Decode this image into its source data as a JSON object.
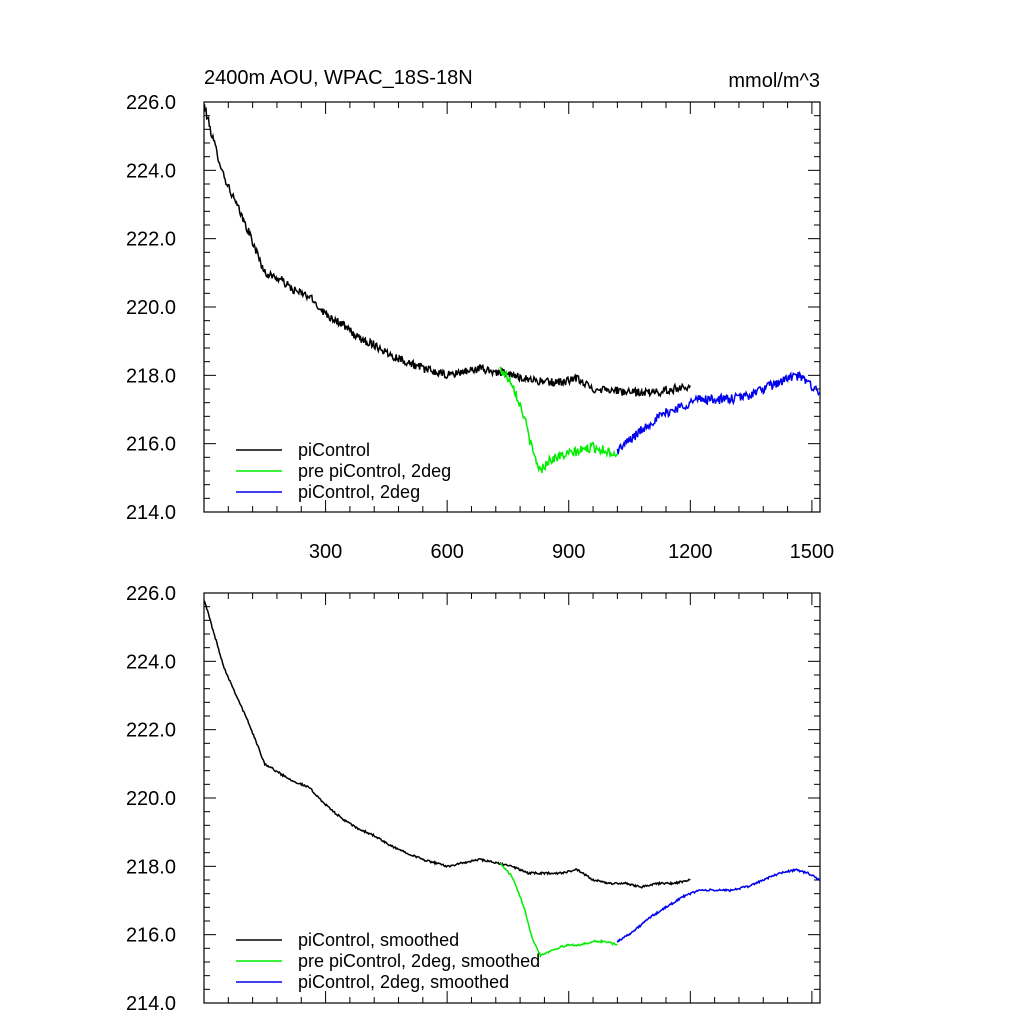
{
  "chart_data": [
    {
      "type": "line",
      "title": "2400m AOU, WPAC_18S-18N",
      "units": "mmol/m^3",
      "xlabel": "",
      "ylabel": "",
      "xlim": [
        0,
        1520
      ],
      "ylim": [
        214.0,
        226.0
      ],
      "x_ticks": [
        300,
        600,
        900,
        1200,
        1500
      ],
      "x_tick_labels": [
        "300",
        "600",
        "900",
        "1200",
        "1500"
      ],
      "y_ticks": [
        214.0,
        216.0,
        218.0,
        220.0,
        222.0,
        224.0,
        226.0
      ],
      "y_tick_labels": [
        "214.0",
        "216.0",
        "218.0",
        "220.0",
        "222.0",
        "224.0",
        "226.0"
      ],
      "legend_position": "bottom-left",
      "series": [
        {
          "name": "piControl",
          "color": "#000000",
          "noise": 0.12,
          "x": [
            1,
            20,
            50,
            80,
            110,
            150,
            190,
            220,
            260,
            300,
            340,
            380,
            420,
            460,
            500,
            540,
            600,
            640,
            680,
            720,
            760,
            800,
            840,
            880,
            920,
            960,
            1000,
            1040,
            1080,
            1120,
            1160,
            1200
          ],
          "y": [
            225.9,
            225.0,
            223.8,
            223.0,
            222.2,
            221.0,
            220.8,
            220.5,
            220.3,
            219.8,
            219.5,
            219.1,
            218.9,
            218.6,
            218.4,
            218.2,
            218.0,
            218.1,
            218.2,
            218.1,
            218.0,
            217.9,
            217.8,
            217.8,
            217.9,
            217.6,
            217.6,
            217.5,
            217.5,
            217.5,
            217.6,
            217.7
          ]
        },
        {
          "name": "pre piControl, 2deg",
          "color": "#00ee00",
          "noise": 0.14,
          "x": [
            730,
            760,
            790,
            810,
            830,
            850,
            870,
            900,
            930,
            960,
            990,
            1020
          ],
          "y": [
            218.2,
            217.8,
            216.8,
            215.8,
            215.2,
            215.5,
            215.6,
            215.7,
            215.8,
            215.9,
            215.8,
            215.7
          ],
          "noise_start_index": 0
        },
        {
          "name": "piControl, 2deg",
          "color": "#0000ee",
          "noise": 0.14,
          "x": [
            1020,
            1060,
            1100,
            1140,
            1180,
            1220,
            1260,
            1300,
            1340,
            1380,
            1420,
            1460,
            1490,
            1520
          ],
          "y": [
            215.8,
            216.2,
            216.6,
            216.9,
            217.1,
            217.3,
            217.3,
            217.3,
            217.4,
            217.6,
            217.8,
            218.0,
            217.8,
            217.5
          ]
        }
      ]
    },
    {
      "type": "line",
      "title": "",
      "xlabel": "",
      "ylabel": "",
      "xlim": [
        0,
        1520
      ],
      "ylim": [
        214.0,
        226.0
      ],
      "x_ticks": [
        300,
        600,
        900,
        1200,
        1500
      ],
      "x_tick_labels": [],
      "y_ticks": [
        214.0,
        216.0,
        218.0,
        220.0,
        222.0,
        224.0,
        226.0
      ],
      "y_tick_labels": [
        "214.0",
        "216.0",
        "218.0",
        "220.0",
        "222.0",
        "224.0",
        "226.0"
      ],
      "legend_position": "bottom-left",
      "series": [
        {
          "name": "piControl, smoothed",
          "color": "#000000",
          "noise": 0.03,
          "x": [
            1,
            20,
            50,
            80,
            110,
            150,
            190,
            220,
            260,
            300,
            340,
            380,
            420,
            460,
            500,
            540,
            600,
            640,
            680,
            720,
            760,
            800,
            840,
            880,
            920,
            960,
            1000,
            1040,
            1080,
            1120,
            1160,
            1200
          ],
          "y": [
            225.8,
            225.0,
            223.8,
            223.0,
            222.2,
            221.0,
            220.7,
            220.5,
            220.3,
            219.8,
            219.4,
            219.1,
            218.9,
            218.6,
            218.4,
            218.2,
            218.0,
            218.1,
            218.2,
            218.1,
            218.0,
            217.8,
            217.8,
            217.8,
            217.9,
            217.6,
            217.5,
            217.5,
            217.4,
            217.5,
            217.5,
            217.6
          ]
        },
        {
          "name": "pre piControl, 2deg, smoothed",
          "color": "#00ee00",
          "noise": 0.03,
          "x": [
            730,
            760,
            790,
            810,
            830,
            850,
            870,
            900,
            930,
            960,
            990,
            1020
          ],
          "y": [
            218.1,
            217.7,
            216.8,
            215.9,
            215.4,
            215.5,
            215.6,
            215.7,
            215.7,
            215.8,
            215.8,
            215.7
          ]
        },
        {
          "name": "piControl, 2deg, smoothed",
          "color": "#0000ee",
          "noise": 0.03,
          "x": [
            1020,
            1060,
            1100,
            1140,
            1180,
            1220,
            1260,
            1300,
            1340,
            1380,
            1420,
            1460,
            1490,
            1520
          ],
          "y": [
            215.8,
            216.1,
            216.5,
            216.8,
            217.1,
            217.3,
            217.3,
            217.3,
            217.4,
            217.6,
            217.8,
            217.9,
            217.8,
            217.6
          ]
        }
      ]
    }
  ]
}
